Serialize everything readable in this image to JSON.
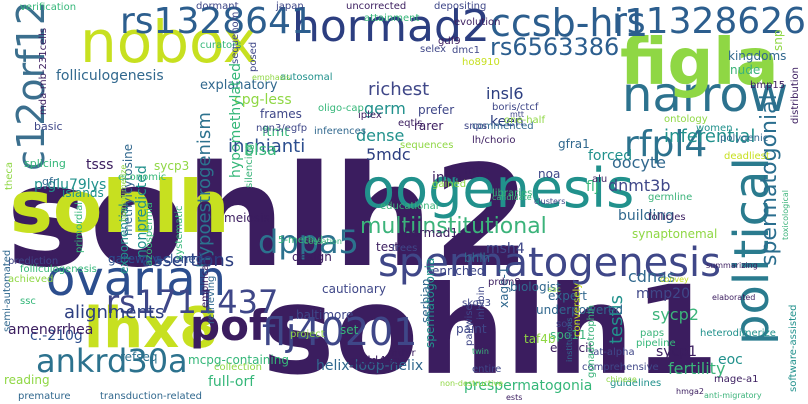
{
  "palette": {
    "dark_purple": "#3b1d5f",
    "indigo": "#3f4788",
    "blue": "#31688e",
    "teal": "#21918c",
    "green": "#35b779",
    "lime": "#8fd744",
    "yellow": "#c7e020",
    "background": "#ffffff"
  },
  "words": [
    {
      "text": "sohlh2",
      "color": "#3b1d5f"
    },
    {
      "text": "sohlh1",
      "color": "#3b1d5f"
    },
    {
      "text": "sohlh",
      "color": "#c7e020"
    },
    {
      "text": "oogenesis",
      "color": "#21918c"
    },
    {
      "text": "spermatogenesis",
      "color": "#3f4788"
    },
    {
      "text": "narrow",
      "color": "#2c728e"
    },
    {
      "text": "figla",
      "color": "#8fd744"
    },
    {
      "text": "political",
      "color": "#2a7b8e"
    },
    {
      "text": "nobox",
      "color": "#c7e020"
    },
    {
      "text": "lhx8",
      "color": "#c7e020"
    },
    {
      "text": "hormad2",
      "color": "#2c3e80"
    },
    {
      "text": "ccsb-hi1",
      "color": "#2c5e8e"
    },
    {
      "text": "rs1328641",
      "color": "#2c5e8e"
    },
    {
      "text": "rs1328626",
      "color": "#2c5e8e"
    },
    {
      "text": "rs6563386",
      "color": "#2c5e8e"
    },
    {
      "text": "c12orf12",
      "color": "#3b6f8e"
    },
    {
      "text": "ovarian",
      "color": "#2c4e8e"
    },
    {
      "text": "pof",
      "color": "#3b1d5f"
    },
    {
      "text": "flj40201",
      "color": "#3f4788"
    },
    {
      "text": "rs1711437",
      "color": "#3f4788"
    },
    {
      "text": "ankrd30a",
      "color": "#2c728e"
    },
    {
      "text": "dppa5",
      "color": "#2c728e"
    },
    {
      "text": "rfpl4",
      "color": "#2c728e"
    },
    {
      "text": "multiinstitutional",
      "color": "#3bb37a"
    },
    {
      "text": "spermatogonial",
      "color": "#2a6e8e"
    },
    {
      "text": "folliculogenesis",
      "color": "#31688e"
    },
    {
      "text": "explanatory",
      "color": "#31688e"
    },
    {
      "text": "cpg-less",
      "color": "#8fd744"
    },
    {
      "text": "richest",
      "color": "#3f4788"
    },
    {
      "text": "inferential",
      "color": "#21918c"
    },
    {
      "text": "germ",
      "color": "#21918c"
    },
    {
      "text": "hypomethylated",
      "color": "#35b779"
    },
    {
      "text": "inchianti",
      "color": "#2c4e8e"
    },
    {
      "text": "hypoestrogenism",
      "color": "#2c728e"
    },
    {
      "text": "nonpredicted",
      "color": "#21918c"
    },
    {
      "text": "p.glu79lys",
      "color": "#21918c"
    },
    {
      "text": "assertions",
      "color": "#2c3e80"
    },
    {
      "text": "alignments",
      "color": "#2c3e80"
    },
    {
      "text": "c.-210g",
      "color": "#2c4e8e"
    },
    {
      "text": "gateway-cloned",
      "color": "#2c4e8e"
    },
    {
      "text": "blsa",
      "color": "#35b779"
    },
    {
      "text": "dense",
      "color": "#21918c"
    },
    {
      "text": "5mdc",
      "color": "#2c3e80"
    },
    {
      "text": "insl6",
      "color": "#2c3e80"
    },
    {
      "text": "keen",
      "color": "#2c3e80"
    },
    {
      "text": "dnmt3b",
      "color": "#3f4788"
    },
    {
      "text": "oocyte",
      "color": "#31688e"
    },
    {
      "text": "building",
      "color": "#31688e"
    },
    {
      "text": "synaptonemal",
      "color": "#8fd744"
    },
    {
      "text": "cdnas",
      "color": "#31688e"
    },
    {
      "text": "msh4",
      "color": "#3f4788"
    },
    {
      "text": "sycp2",
      "color": "#3bb37a"
    },
    {
      "text": "testis",
      "color": "#21918c"
    },
    {
      "text": "fertility",
      "color": "#3bb37a"
    },
    {
      "text": "eoc",
      "color": "#21918c"
    },
    {
      "text": "sycp1",
      "color": "#3b1d5f"
    },
    {
      "text": "mmp20",
      "color": "#3f4788"
    },
    {
      "text": "helix-loop-helix",
      "color": "#31688e"
    },
    {
      "text": "prespermatogonia",
      "color": "#35b779"
    },
    {
      "text": "full-orf",
      "color": "#35b779"
    },
    {
      "text": "amenorrhea",
      "color": "#3b1d5f"
    },
    {
      "text": "spermatogonia",
      "color": "#21918c"
    },
    {
      "text": "xage-1",
      "color": "#31688e"
    },
    {
      "text": "hormad1",
      "color": "#3b1d5f"
    },
    {
      "text": "meiosis",
      "color": "#3b1d5f"
    },
    {
      "text": "islands",
      "color": "#21918c"
    },
    {
      "text": "exponential",
      "color": "#21918c"
    },
    {
      "text": "methylcytosine",
      "color": "#31688e"
    },
    {
      "text": "ftmt",
      "color": "#35b779"
    },
    {
      "text": "flj",
      "color": "#35b779"
    },
    {
      "text": "forced",
      "color": "#21918c"
    },
    {
      "text": "gfra1",
      "color": "#31688e"
    },
    {
      "text": "inha",
      "color": "#3b1d5f"
    },
    {
      "text": "noa",
      "color": "#3f4788"
    },
    {
      "text": "mgc",
      "color": "#3b1d5f"
    },
    {
      "text": "bhlh",
      "color": "#31688e"
    },
    {
      "text": "enriched",
      "color": "#3f4788"
    },
    {
      "text": "biologist",
      "color": "#31688e"
    },
    {
      "text": "testes",
      "color": "#3b1d5f"
    },
    {
      "text": "design",
      "color": "#3b1d5f"
    },
    {
      "text": "5-methyl",
      "color": "#35b779"
    },
    {
      "text": "cautionary",
      "color": "#3f4788"
    },
    {
      "text": "baltimore",
      "color": "#3f4788"
    },
    {
      "text": "set",
      "color": "#35b779"
    },
    {
      "text": "expert",
      "color": "#31688e"
    },
    {
      "text": "underpowered",
      "color": "#31688e"
    },
    {
      "text": "spo11",
      "color": "#3bb37a"
    },
    {
      "text": "paint",
      "color": "#3f4788"
    },
    {
      "text": "explicit",
      "color": "#3b1d5f"
    },
    {
      "text": "taf4b",
      "color": "#8fd744"
    },
    {
      "text": "gadd45a",
      "color": "#3b1d5f"
    },
    {
      "text": "mthfr",
      "color": "#3b1d5f"
    },
    {
      "text": "serbian",
      "color": "#31688e"
    },
    {
      "text": "refseq",
      "color": "#2c728e"
    },
    {
      "text": "mcpg-containing",
      "color": "#35b779"
    },
    {
      "text": "collection",
      "color": "#8fd744"
    },
    {
      "text": "transduction-related",
      "color": "#31688e"
    },
    {
      "text": "reading",
      "color": "#8fd744"
    },
    {
      "text": "premature",
      "color": "#31688e"
    },
    {
      "text": "basic",
      "color": "#3f4788"
    },
    {
      "text": "tsss",
      "color": "#3b1d5f"
    },
    {
      "text": "splicing",
      "color": "#35b779"
    },
    {
      "text": "sycp3",
      "color": "#8fd744"
    },
    {
      "text": "gfr",
      "color": "#31688e"
    },
    {
      "text": "frames",
      "color": "#3f4788"
    },
    {
      "text": "selex",
      "color": "#3f4788"
    },
    {
      "text": "dmc1",
      "color": "#3f4788"
    },
    {
      "text": "ho8910",
      "color": "#c7e020"
    },
    {
      "text": "lh/chorio",
      "color": "#3b1d5f"
    },
    {
      "text": "prefer",
      "color": "#3f4788"
    },
    {
      "text": "rarer",
      "color": "#3b1d5f"
    },
    {
      "text": "commenced",
      "color": "#31688e"
    },
    {
      "text": "eqtls",
      "color": "#3b1d5f"
    },
    {
      "text": "iplex",
      "color": "#3b1d5f"
    },
    {
      "text": "inferences",
      "color": "#31688e"
    },
    {
      "text": "curators",
      "color": "#35b779"
    },
    {
      "text": "posed",
      "color": "#3f4788"
    },
    {
      "text": "autosomal",
      "color": "#21918c"
    },
    {
      "text": "kingdoms",
      "color": "#31688e"
    },
    {
      "text": "nude",
      "color": "#3bb37a"
    },
    {
      "text": "snp",
      "color": "#8fd744"
    },
    {
      "text": "bmp15",
      "color": "#3b1d5f"
    },
    {
      "text": "distribution",
      "color": "#3b1d5f"
    },
    {
      "text": "software-assisted",
      "color": "#21918c"
    },
    {
      "text": "mage-a1",
      "color": "#3b1d5f"
    },
    {
      "text": "uncorrected",
      "color": "#3b1d5f"
    },
    {
      "text": "dormant",
      "color": "#3f4788"
    },
    {
      "text": "japan",
      "color": "#3f4788"
    },
    {
      "text": "depositing",
      "color": "#3f4788"
    },
    {
      "text": "attainment",
      "color": "#35b779"
    },
    {
      "text": "evolution",
      "color": "#3b1d5f"
    },
    {
      "text": "gdf9",
      "color": "#3b1d5f"
    },
    {
      "text": "mda-mb-231cells",
      "color": "#3b1d5f"
    },
    {
      "text": "verification",
      "color": "#35b779"
    },
    {
      "text": "sequenom",
      "color": "#3f4788"
    },
    {
      "text": "economic",
      "color": "#35b779"
    },
    {
      "text": "theca",
      "color": "#8fd744"
    },
    {
      "text": "primordial",
      "color": "#35b779"
    },
    {
      "text": "prediction",
      "color": "#3f4788"
    },
    {
      "text": "semi-automated",
      "color": "#31688e"
    },
    {
      "text": "folliculogenesis",
      "color": "#35b779"
    },
    {
      "text": "achieved",
      "color": "#8fd744"
    },
    {
      "text": "ssc",
      "color": "#35b779"
    },
    {
      "text": "oligo-cap",
      "color": "#35b779"
    },
    {
      "text": "ngn3/egfp",
      "color": "#3f4788"
    },
    {
      "text": "silencing",
      "color": "#3bb37a"
    },
    {
      "text": "systematic",
      "color": "#35b779"
    },
    {
      "text": "azoospermia",
      "color": "#35b779"
    },
    {
      "text": "retrieving",
      "color": "#31688e"
    },
    {
      "text": "empirical",
      "color": "#3b1d5f"
    },
    {
      "text": "educational",
      "color": "#3bb37a"
    },
    {
      "text": "gained",
      "color": "#8fd744"
    },
    {
      "text": "libraries",
      "color": "#35b779"
    },
    {
      "text": "alu",
      "color": "#3b1d5f"
    },
    {
      "text": "germline",
      "color": "#3bb37a"
    },
    {
      "text": "follicles",
      "color": "#3b1d5f"
    },
    {
      "text": "ontology",
      "color": "#8fd744"
    },
    {
      "text": "women",
      "color": "#21918c"
    },
    {
      "text": "polygenic",
      "color": "#31688e"
    },
    {
      "text": "deadliest",
      "color": "#c7e020"
    },
    {
      "text": "boris/ctcf",
      "color": "#3f4788"
    },
    {
      "text": "one-half",
      "color": "#8fd744"
    },
    {
      "text": "snps",
      "color": "#3f4788"
    },
    {
      "text": "sequences",
      "color": "#8fd744"
    },
    {
      "text": "trees",
      "color": "#3f4788"
    },
    {
      "text": "prdm9",
      "color": "#3b1d5f"
    },
    {
      "text": "sox3",
      "color": "#3f4788"
    },
    {
      "text": "skov3",
      "color": "#3f4788"
    },
    {
      "text": "paps",
      "color": "#3bb37a"
    },
    {
      "text": "pipeline",
      "color": "#35b779"
    },
    {
      "text": "sat-alpha",
      "color": "#3f4788"
    },
    {
      "text": "comprehensive",
      "color": "#3f4788"
    },
    {
      "text": "guidelines",
      "color": "#21918c"
    },
    {
      "text": "heterodimerize",
      "color": "#21918c"
    },
    {
      "text": "conversely",
      "color": "#c7e020"
    },
    {
      "text": "inhibin",
      "color": "#3f4788"
    },
    {
      "text": "pairwise",
      "color": "#3f4788"
    },
    {
      "text": "gonadotrophin",
      "color": "#3bb37a"
    },
    {
      "text": "entire",
      "color": "#3f4788"
    },
    {
      "text": "project",
      "color": "#8fd744"
    },
    {
      "text": "ssc",
      "color": "#8fd744"
    },
    {
      "text": "summarizing",
      "color": "#3b1d5f"
    },
    {
      "text": "convey",
      "color": "#c7e020"
    },
    {
      "text": "elaborated",
      "color": "#3b1d5f"
    },
    {
      "text": "twin",
      "color": "#3bb37a"
    },
    {
      "text": "hmga2",
      "color": "#3b1d5f"
    },
    {
      "text": "ests",
      "color": "#3b1d5f"
    },
    {
      "text": "institutions",
      "color": "#31688e"
    },
    {
      "text": "anti-migratory",
      "color": "#3bb37a"
    },
    {
      "text": "candidate",
      "color": "#3bb37a"
    },
    {
      "text": "clusters",
      "color": "#3f4788"
    },
    {
      "text": "cessation",
      "color": "#3bb37a"
    },
    {
      "text": "non-destructive",
      "color": "#8fd744"
    },
    {
      "text": "homodimerize",
      "color": "#8fd744"
    },
    {
      "text": "chinese",
      "color": "#8fd744"
    },
    {
      "text": "emphasis",
      "color": "#8fd744"
    },
    {
      "text": "mtt",
      "color": "#3f4788"
    },
    {
      "text": "toxicological",
      "color": "#3bb37a"
    }
  ]
}
